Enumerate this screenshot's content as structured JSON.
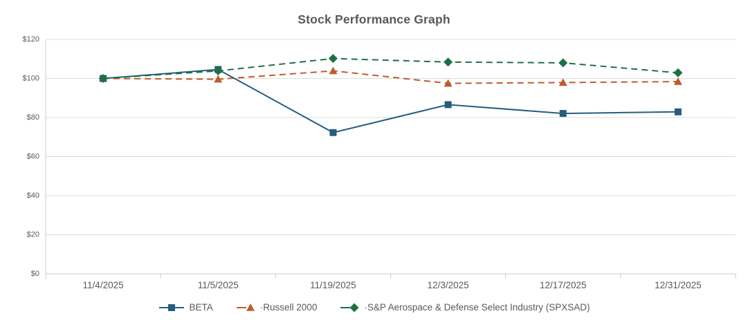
{
  "page": {
    "background_color": "#ffffff"
  },
  "chart_data": {
    "type": "line",
    "title": "Stock Performance Graph",
    "categories": [
      "11/4/2025",
      "11/5/2025",
      "11/19/2025",
      "12/3/2025",
      "12/17/2025",
      "12/31/2025"
    ],
    "series": [
      {
        "key": "beta",
        "name": "BETA",
        "label": "BETA",
        "color": "#255e7e",
        "marker": "square",
        "line_style": "solid",
        "values": [
          100,
          104.6,
          72.3,
          86.6,
          82.1,
          82.9
        ]
      },
      {
        "key": "russell-2000",
        "name": "Russell 2000",
        "label": "·Russell 2000",
        "color": "#c05a2b",
        "marker": "triangle",
        "line_style": "dashed",
        "values": [
          100,
          99.6,
          103.9,
          97.5,
          97.9,
          98.4
        ]
      },
      {
        "key": "spxsad",
        "name": "S&P Aerospace & Defense Select Industry (SPXSAD)",
        "label": "·S&P Aerospace & Defense Select Industry (SPXSAD)",
        "color": "#1e7044",
        "marker": "diamond",
        "line_style": "dashed",
        "values": [
          100,
          103.9,
          110.2,
          108.4,
          108,
          102.9
        ]
      }
    ],
    "xlabel": "",
    "ylabel": "",
    "ylim": [
      0,
      120
    ],
    "ytick_step": 20,
    "ytick_labels": [
      "$0",
      "$20",
      "$40",
      "$60",
      "$80",
      "$100",
      "$120"
    ],
    "grid": "horizontal",
    "legend_position": "bottom",
    "colors": {
      "gridline": "#dcdcdc",
      "axis": "#cdcdcd",
      "title_text": "#595959",
      "axis_text": "#595959",
      "legend_text": "#595959"
    }
  }
}
